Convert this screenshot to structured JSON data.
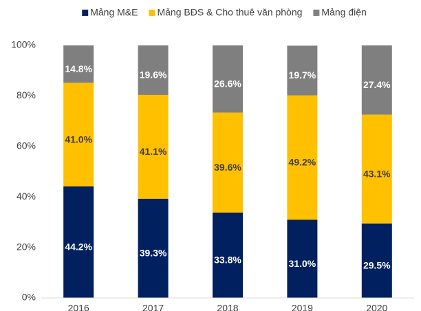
{
  "chart_data": {
    "type": "stacked_bar",
    "categories": [
      "2016",
      "2017",
      "2018",
      "2019",
      "2020"
    ],
    "series": [
      {
        "name": "Mảng M&E",
        "color": "#002060",
        "label_color": "#ffffff",
        "values": [
          44.2,
          39.3,
          33.8,
          31.0,
          29.5
        ],
        "value_labels": [
          "44.2%",
          "39.3%",
          "33.8%",
          "31.0%",
          "29.5%"
        ]
      },
      {
        "name": "Mảng BĐS & Cho thuê văn phòng",
        "color": "#ffc000",
        "label_color": "#404040",
        "values": [
          41.0,
          41.1,
          39.6,
          49.2,
          43.1
        ],
        "value_labels": [
          "41.0%",
          "41.1%",
          "39.6%",
          "49.2%",
          "43.1%"
        ]
      },
      {
        "name": "Mảng điện",
        "color": "#7f7f7f",
        "label_color": "#ffffff",
        "values": [
          14.8,
          19.6,
          26.6,
          19.7,
          27.4
        ],
        "value_labels": [
          "14.8%",
          "19.6%",
          "26.6%",
          "19.7%",
          "27.4%"
        ]
      }
    ],
    "ylim": [
      0,
      100
    ],
    "yticks": [
      {
        "value": 0,
        "label": "0%"
      },
      {
        "value": 20,
        "label": "20%"
      },
      {
        "value": 40,
        "label": "40%"
      },
      {
        "value": 60,
        "label": "60%"
      },
      {
        "value": 80,
        "label": "80%"
      },
      {
        "value": 100,
        "label": "100%"
      }
    ],
    "legend": "top",
    "grid": false
  }
}
